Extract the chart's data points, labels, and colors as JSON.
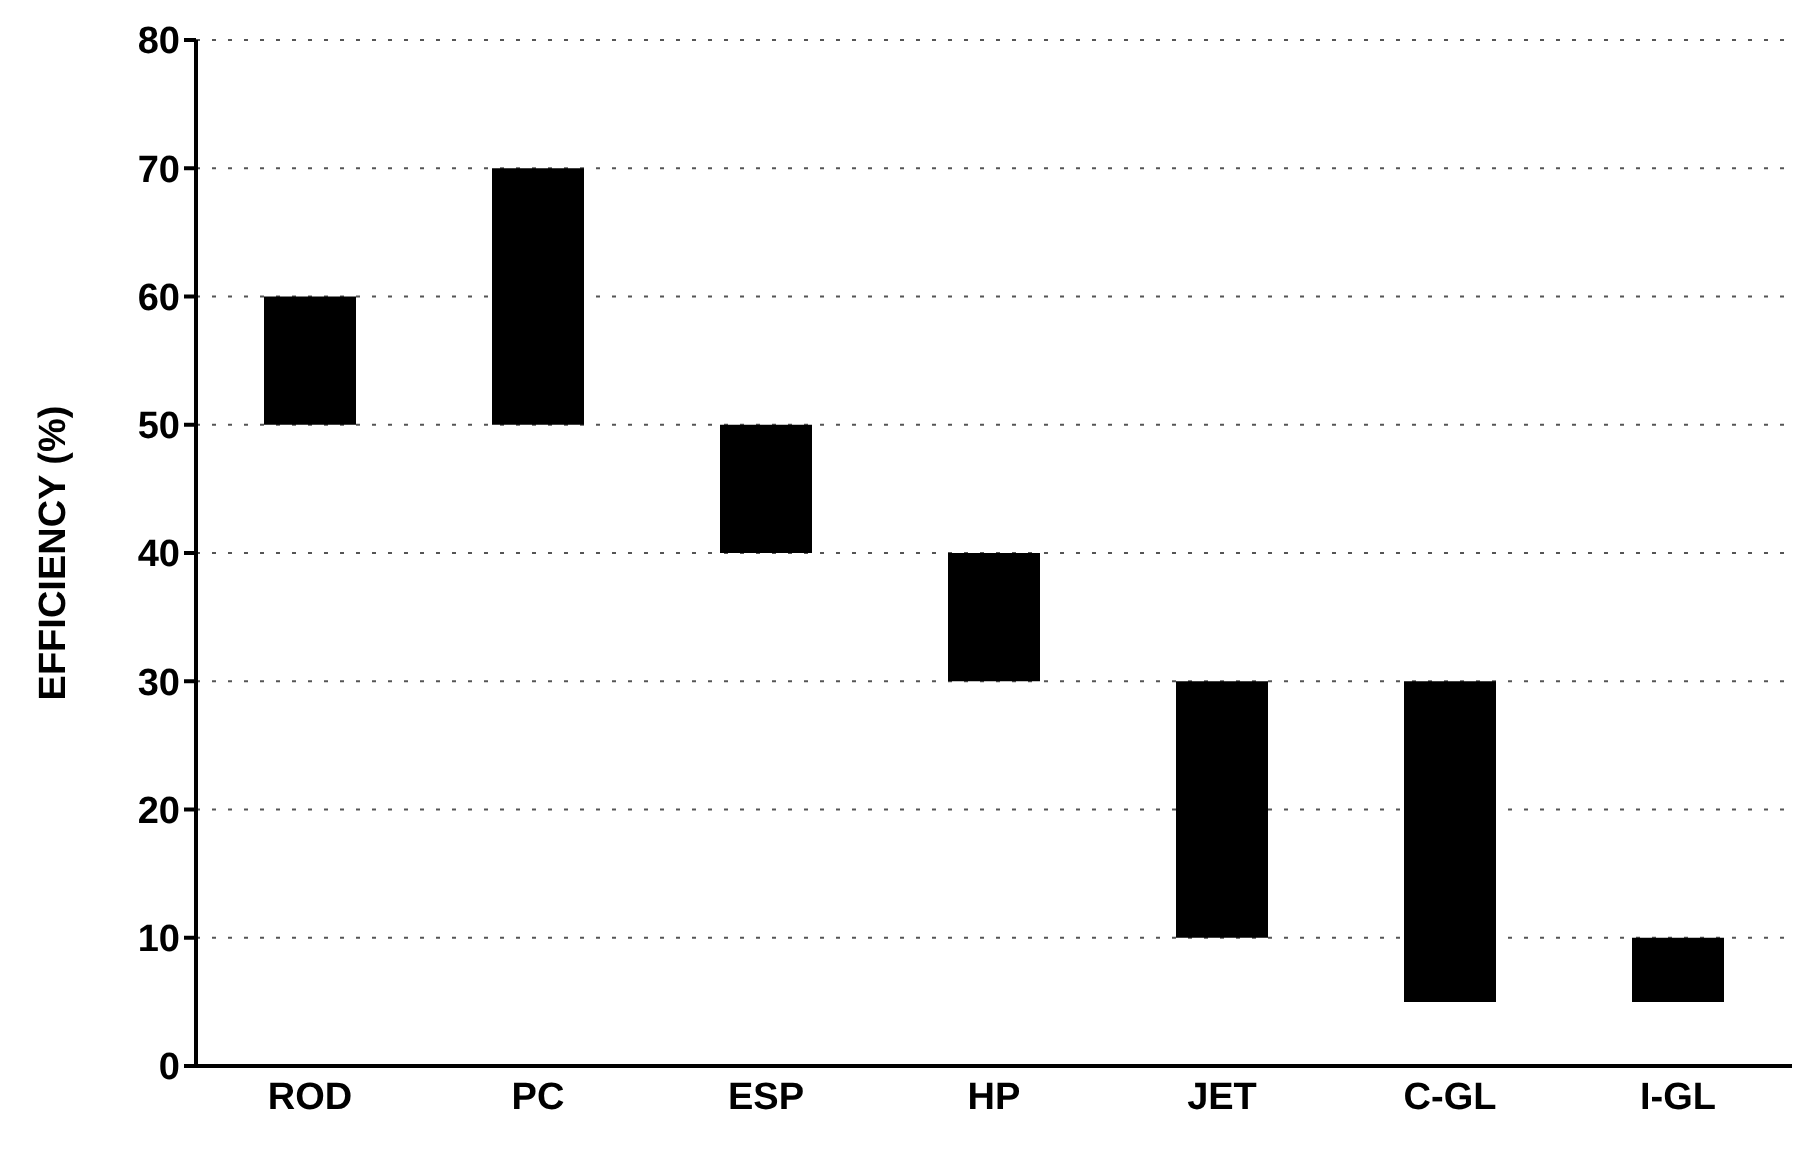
{
  "chart_data": {
    "type": "bar",
    "ylabel": "EFFICIENCY (%)",
    "categories": [
      "ROD",
      "PC",
      "ESP",
      "HP",
      "JET",
      "C-GL",
      "I-GL"
    ],
    "base": [
      50,
      50,
      40,
      30,
      10,
      5,
      5
    ],
    "values": [
      10,
      20,
      10,
      10,
      20,
      25,
      5
    ],
    "color": "#000000",
    "ylim": [
      0,
      80
    ],
    "yticks": [
      0,
      10,
      20,
      30,
      40,
      50,
      60,
      70,
      80
    ],
    "grid": "y"
  }
}
